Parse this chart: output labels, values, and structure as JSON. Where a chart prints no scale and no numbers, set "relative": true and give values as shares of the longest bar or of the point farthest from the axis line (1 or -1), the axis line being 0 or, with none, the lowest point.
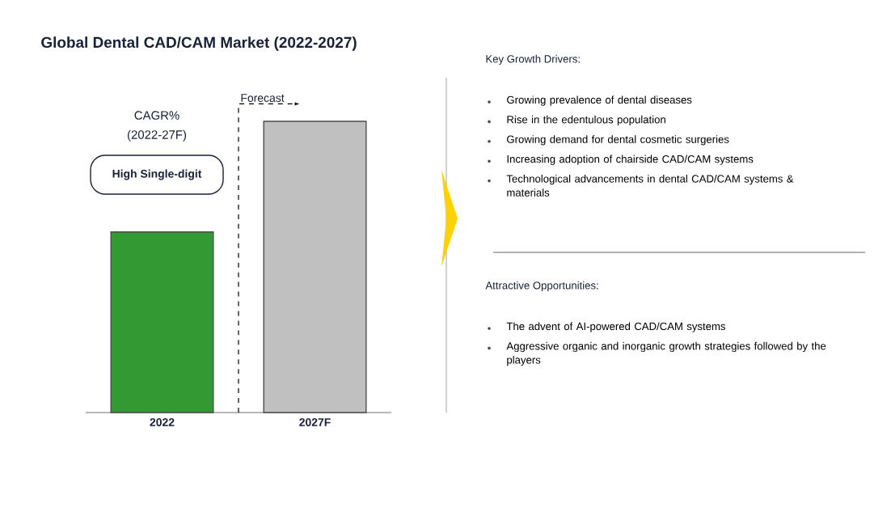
{
  "chart_data": {
    "type": "bar",
    "title": "Global Dental CAD/CAM Market (2022-2027)",
    "categories": [
      "2022",
      "2027F"
    ],
    "values": [
      0.62,
      1
    ],
    "colors": [
      "#339933",
      "#c0c0c0"
    ],
    "relative": true,
    "annotations": [
      "CAGR% (2022-27F)",
      "High Single-digit",
      "Forecast",
      "Key Growth Drivers:",
      "Growing prevalence of dental diseases",
      "Rise in the edentulous population",
      "Growing demand for dental cosmetic surgeries",
      "Increasing adoption of chairside CAD/CAM systems",
      "Technological advancements in dental CAD/CAM systems & materials",
      "Attractive Opportunities:",
      "The advent of AI-powered CAD/CAM systems",
      "Aggressive organic and inorganic growth strategies followed by the players"
    ]
  }
}
